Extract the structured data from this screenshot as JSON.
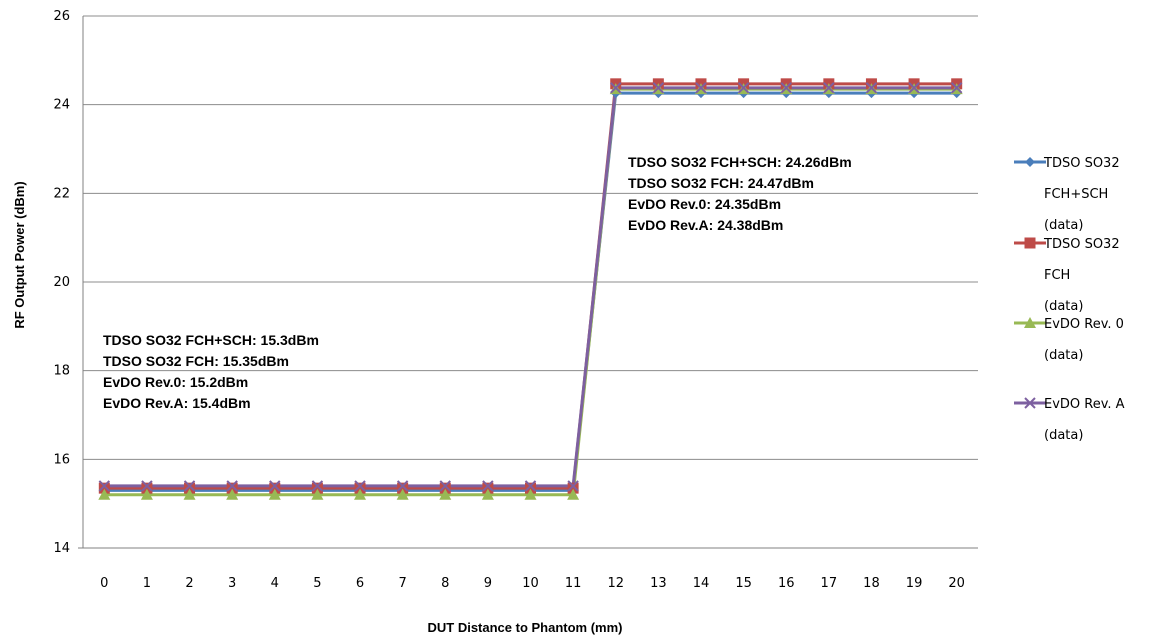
{
  "chart_data": {
    "type": "line",
    "xlabel": "DUT Distance to Phantom (mm)",
    "ylabel": "RF Output Power (dBm)",
    "ylim": [
      14,
      26
    ],
    "yticks": [
      14,
      16,
      18,
      20,
      22,
      24,
      26
    ],
    "x": [
      0,
      1,
      2,
      3,
      4,
      5,
      6,
      7,
      8,
      9,
      10,
      11,
      12,
      13,
      14,
      15,
      16,
      17,
      18,
      19,
      20
    ],
    "grid": "horizontal",
    "legend_position": "right",
    "series": [
      {
        "name_lines": [
          "TDSO SO32",
          "FCH+SCH",
          "(data)"
        ],
        "color": "#4a7ebb",
        "marker": "diamond",
        "values": [
          15.3,
          15.3,
          15.3,
          15.3,
          15.3,
          15.3,
          15.3,
          15.3,
          15.3,
          15.3,
          15.3,
          15.3,
          24.26,
          24.26,
          24.26,
          24.26,
          24.26,
          24.26,
          24.26,
          24.26,
          24.26
        ]
      },
      {
        "name_lines": [
          "TDSO SO32",
          "FCH",
          "(data)"
        ],
        "color": "#be4b48",
        "marker": "square",
        "values": [
          15.35,
          15.35,
          15.35,
          15.35,
          15.35,
          15.35,
          15.35,
          15.35,
          15.35,
          15.35,
          15.35,
          15.35,
          24.47,
          24.47,
          24.47,
          24.47,
          24.47,
          24.47,
          24.47,
          24.47,
          24.47
        ]
      },
      {
        "name_lines": [
          "EvDO Rev. 0",
          "(data)"
        ],
        "color": "#98b954",
        "marker": "triangle",
        "values": [
          15.2,
          15.2,
          15.2,
          15.2,
          15.2,
          15.2,
          15.2,
          15.2,
          15.2,
          15.2,
          15.2,
          15.2,
          24.35,
          24.35,
          24.35,
          24.35,
          24.35,
          24.35,
          24.35,
          24.35,
          24.35
        ]
      },
      {
        "name_lines": [
          "EvDO Rev. A",
          "(data)"
        ],
        "color": "#7d60a0",
        "marker": "x",
        "values": [
          15.4,
          15.4,
          15.4,
          15.4,
          15.4,
          15.4,
          15.4,
          15.4,
          15.4,
          15.4,
          15.4,
          15.4,
          24.38,
          24.38,
          24.38,
          24.38,
          24.38,
          24.38,
          24.38,
          24.38,
          24.38
        ]
      }
    ],
    "annotations": [
      {
        "lines": [
          "TDSO SO32 FCH+SCH:  15.3dBm",
          "TDSO SO32 FCH: 15.35dBm",
          "EvDO Rev.0: 15.2dBm",
          "EvDO Rev.A: 15.4dBm"
        ]
      },
      {
        "lines": [
          "TDSO SO32 FCH+SCH:  24.26dBm",
          "TDSO SO32 FCH: 24.47dBm",
          "EvDO Rev.0: 24.35dBm",
          "EvDO Rev.A: 24.38dBm"
        ]
      }
    ]
  }
}
